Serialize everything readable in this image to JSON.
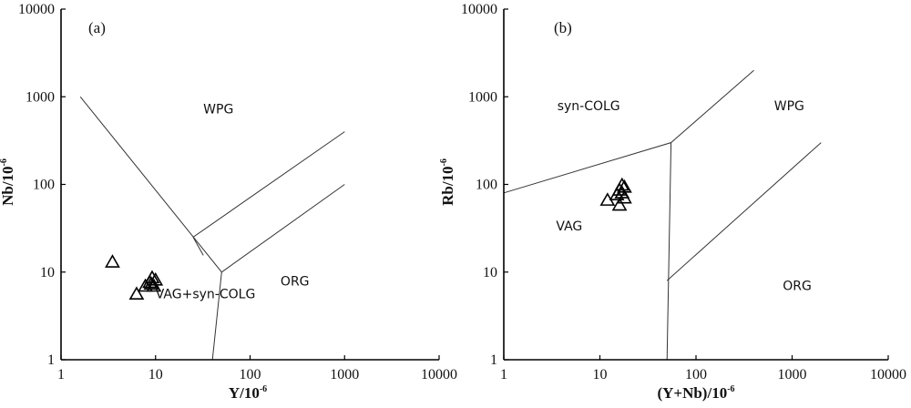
{
  "chart_data": [
    {
      "type": "scatter",
      "panel_label": "(a)",
      "xlabel": "Y/10",
      "xlabel_sup": "-6",
      "ylabel": "Nb/10",
      "ylabel_sup": "-6",
      "xscale": "log",
      "yscale": "log",
      "xlim": [
        1,
        10000
      ],
      "ylim": [
        1,
        10000
      ],
      "xticks": [
        "1",
        "10",
        "100",
        "1000",
        "10000"
      ],
      "yticks": [
        "1",
        "10",
        "100",
        "1000",
        "10000"
      ],
      "grid": false,
      "regions": [
        {
          "label": "WPG",
          "x": 32,
          "y": 650
        },
        {
          "label": "VAG+syn-COLG",
          "x": 10,
          "y": 5
        },
        {
          "label": "ORG",
          "x": 210,
          "y": 7
        }
      ],
      "boundaries": [
        [
          [
            1.6,
            1000
          ],
          [
            50,
            10
          ],
          [
            40,
            1
          ]
        ],
        [
          [
            50,
            10
          ],
          [
            1000,
            100
          ]
        ],
        [
          [
            25,
            25
          ],
          [
            1000,
            400
          ]
        ],
        [
          [
            25,
            25
          ],
          [
            32,
            15.5
          ]
        ]
      ],
      "points": [
        {
          "x": 3.5,
          "y": 13
        },
        {
          "x": 6.3,
          "y": 5.6
        },
        {
          "x": 7.8,
          "y": 6.9
        },
        {
          "x": 8.7,
          "y": 7.6
        },
        {
          "x": 9.2,
          "y": 8.6
        },
        {
          "x": 9.6,
          "y": 6.9
        },
        {
          "x": 10,
          "y": 8.1
        },
        {
          "x": 9.0,
          "y": 7.3
        }
      ]
    },
    {
      "type": "scatter",
      "panel_label": "(b)",
      "xlabel": "(Y+Nb)/10",
      "xlabel_sup": "-6",
      "ylabel": "Rb/10",
      "ylabel_sup": "-6",
      "xscale": "log",
      "yscale": "log",
      "xlim": [
        1,
        10000
      ],
      "ylim": [
        1,
        10000
      ],
      "xticks": [
        "1",
        "10",
        "100",
        "1000",
        "10000"
      ],
      "yticks": [
        "1",
        "10",
        "100",
        "1000",
        "10000"
      ],
      "grid": false,
      "regions": [
        {
          "label": "syn-COLG",
          "x": 3.6,
          "y": 700
        },
        {
          "label": "WPG",
          "x": 650,
          "y": 700
        },
        {
          "label": "VAG",
          "x": 3.5,
          "y": 30
        },
        {
          "label": "ORG",
          "x": 800,
          "y": 6.2
        }
      ],
      "boundaries": [
        [
          [
            1,
            80
          ],
          [
            55,
            300
          ],
          [
            50,
            1
          ]
        ],
        [
          [
            55,
            300
          ],
          [
            400,
            2000
          ]
        ],
        [
          [
            50,
            8
          ],
          [
            2000,
            300
          ]
        ]
      ],
      "points": [
        {
          "x": 12,
          "y": 66
        },
        {
          "x": 15,
          "y": 76
        },
        {
          "x": 16,
          "y": 86
        },
        {
          "x": 17,
          "y": 98
        },
        {
          "x": 18,
          "y": 93
        },
        {
          "x": 18,
          "y": 70
        },
        {
          "x": 16,
          "y": 58
        },
        {
          "x": 17,
          "y": 80
        }
      ]
    }
  ]
}
